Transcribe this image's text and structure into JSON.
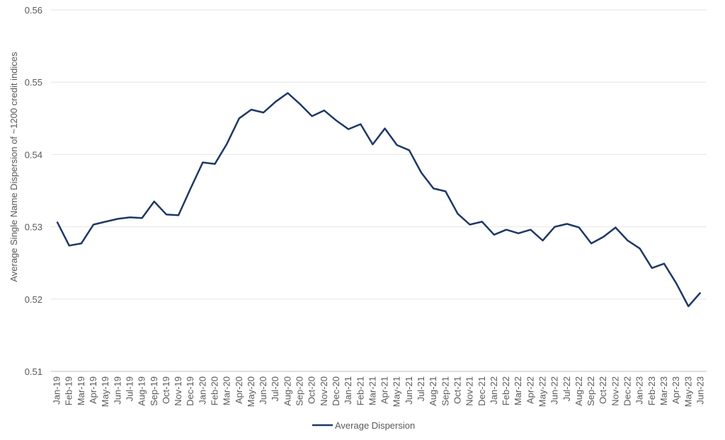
{
  "chart_data": {
    "type": "line",
    "title": "",
    "xlabel": "",
    "ylabel": "Average Single Name Dispersion of ~1200 credit indices",
    "ylim": [
      0.51,
      0.56
    ],
    "yticks": [
      "0.51",
      "0.52",
      "0.53",
      "0.54",
      "0.55",
      "0.56"
    ],
    "grid": true,
    "legend_position": "bottom",
    "categories": [
      "Jan-19",
      "Feb-19",
      "Mar-19",
      "Apr-19",
      "May-19",
      "Jun-19",
      "Jul-19",
      "Aug-19",
      "Sep-19",
      "Oct-19",
      "Nov-19",
      "Dec-19",
      "Jan-20",
      "Feb-20",
      "Mar-20",
      "Apr-20",
      "May-20",
      "Jun-20",
      "Jul-20",
      "Aug-20",
      "Sep-20",
      "Oct-20",
      "Nov-20",
      "Dec-20",
      "Jan-21",
      "Feb-21",
      "Mar-21",
      "Apr-21",
      "May-21",
      "Jun-21",
      "Jul-21",
      "Aug-21",
      "Sep-21",
      "Oct-21",
      "Nov-21",
      "Dec-21",
      "Jan-22",
      "Feb-22",
      "Mar-22",
      "Apr-22",
      "May-22",
      "Jun-22",
      "Jul-22",
      "Aug-22",
      "Sep-22",
      "Oct-22",
      "Nov-22",
      "Dec-22",
      "Jan-23",
      "Feb-23",
      "Mar-23",
      "Apr-23",
      "May-23",
      "Jun-23"
    ],
    "series": [
      {
        "name": "Average Dispersion",
        "color": "#1f3864",
        "values": [
          0.5307,
          0.5274,
          0.5277,
          0.5303,
          0.5307,
          0.5311,
          0.5313,
          0.5312,
          0.5335,
          0.5317,
          0.5316,
          0.5353,
          0.5389,
          0.5387,
          0.5415,
          0.545,
          0.5462,
          0.5458,
          0.5473,
          0.5485,
          0.547,
          0.5453,
          0.5461,
          0.5447,
          0.5435,
          0.5442,
          0.5414,
          0.5436,
          0.5413,
          0.5406,
          0.5375,
          0.5353,
          0.5349,
          0.5318,
          0.5303,
          0.5307,
          0.5289,
          0.5296,
          0.5291,
          0.5296,
          0.5281,
          0.53,
          0.5304,
          0.5299,
          0.5277,
          0.5286,
          0.5299,
          0.5281,
          0.527,
          0.5243,
          0.5249,
          0.5222,
          0.519,
          0.5209
        ]
      }
    ]
  }
}
